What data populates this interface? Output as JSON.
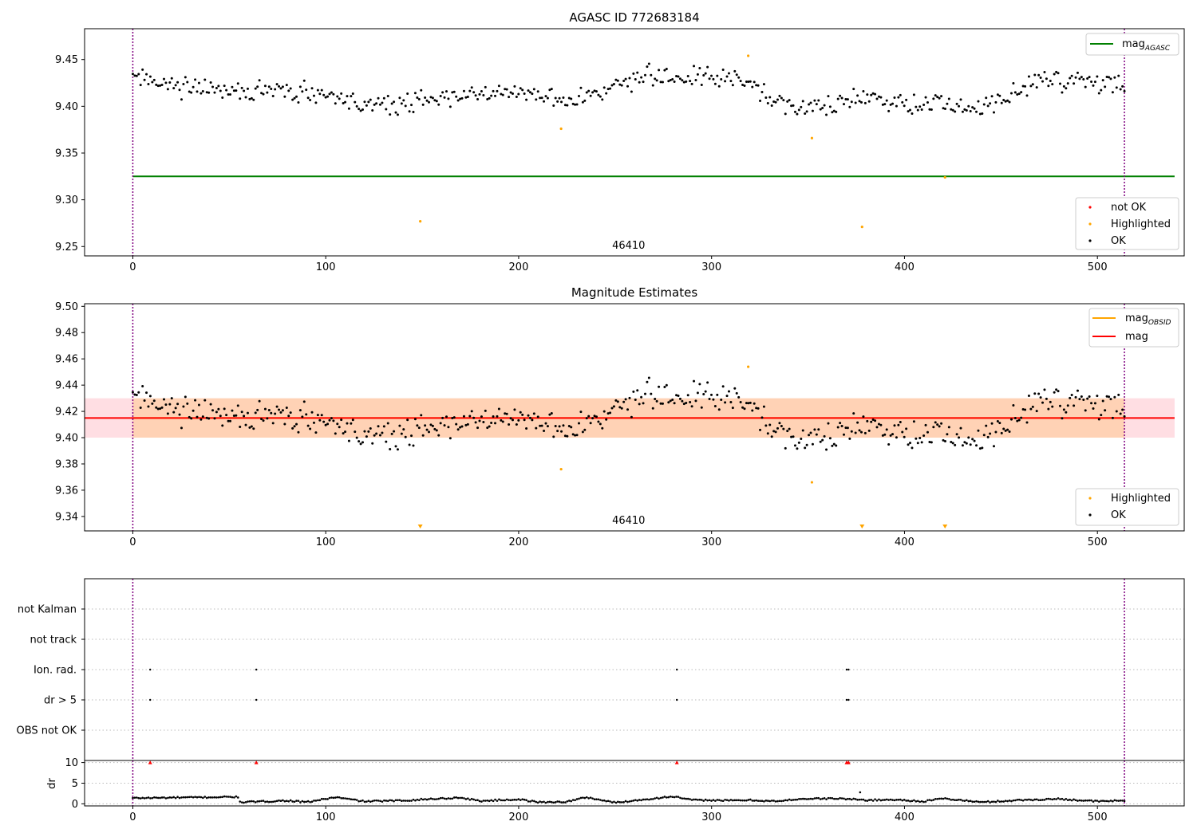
{
  "chart_data": [
    {
      "type": "scatter",
      "title": "AGASC ID 772683184",
      "xlim": [
        -25,
        545
      ],
      "ylim": [
        9.24,
        9.483
      ],
      "xticks": [
        0,
        100,
        200,
        300,
        400,
        500
      ],
      "yticks": [
        9.25,
        9.3,
        9.35,
        9.4,
        9.45
      ],
      "ytick_labels": [
        "9.25",
        "9.30",
        "9.35",
        "9.40",
        "9.45"
      ],
      "obsid_label": "46410",
      "obsid_label_x": 257,
      "vlines": [
        0,
        514
      ],
      "hline_agasc": {
        "value": 9.325,
        "x_range": [
          0,
          540
        ]
      },
      "legend_top": [
        {
          "label": "mag",
          "sub": "AGASC",
          "color": "#008000"
        }
      ],
      "legend_bottom": [
        {
          "label": "not OK",
          "color": "#ff0000"
        },
        {
          "label": "Highlighted",
          "color": "#ffa500"
        },
        {
          "label": "OK",
          "color": "#000000"
        }
      ],
      "highlighted_points": [
        [
          149,
          9.277
        ],
        [
          222,
          9.376
        ],
        [
          319,
          9.454
        ],
        [
          352,
          9.366
        ],
        [
          378,
          9.271
        ],
        [
          421,
          9.324
        ]
      ],
      "ok_trend": [
        [
          0,
          9.43
        ],
        [
          15,
          9.425
        ],
        [
          30,
          9.42
        ],
        [
          50,
          9.415
        ],
        [
          70,
          9.415
        ],
        [
          90,
          9.414
        ],
        [
          110,
          9.408
        ],
        [
          125,
          9.4
        ],
        [
          140,
          9.403
        ],
        [
          160,
          9.41
        ],
        [
          180,
          9.412
        ],
        [
          200,
          9.418
        ],
        [
          215,
          9.415
        ],
        [
          225,
          9.405
        ],
        [
          240,
          9.413
        ],
        [
          260,
          9.43
        ],
        [
          280,
          9.432
        ],
        [
          300,
          9.432
        ],
        [
          320,
          9.428
        ],
        [
          330,
          9.408
        ],
        [
          345,
          9.4
        ],
        [
          360,
          9.398
        ],
        [
          380,
          9.41
        ],
        [
          400,
          9.405
        ],
        [
          420,
          9.402
        ],
        [
          440,
          9.397
        ],
        [
          455,
          9.412
        ],
        [
          470,
          9.425
        ],
        [
          490,
          9.428
        ],
        [
          514,
          9.422
        ]
      ],
      "ok_spread": 0.009,
      "ok_count": 510,
      "ok_x_range": [
        0,
        514
      ]
    },
    {
      "type": "scatter",
      "title": "Magnitude Estimates",
      "xlim": [
        -25,
        545
      ],
      "ylim": [
        9.329,
        9.502
      ],
      "xticks": [
        0,
        100,
        200,
        300,
        400,
        500
      ],
      "yticks": [
        9.34,
        9.36,
        9.38,
        9.4,
        9.42,
        9.44,
        9.46,
        9.48,
        9.5
      ],
      "ytick_labels": [
        "9.34",
        "9.36",
        "9.38",
        "9.40",
        "9.42",
        "9.44",
        "9.46",
        "9.48",
        "9.50"
      ],
      "obsid_label": "46410",
      "obsid_label_x": 257,
      "vlines": [
        0,
        514
      ],
      "mag": 9.415,
      "mag_band": [
        9.4,
        9.43
      ],
      "mag_obsid": 9.415,
      "band_x_range": [
        -25,
        540
      ],
      "legend_top": [
        {
          "label": "mag",
          "sub": "OBSID",
          "color": "#ffa500"
        },
        {
          "label": "mag",
          "sub": "",
          "color": "#ff0000"
        }
      ],
      "legend_bottom": [
        {
          "label": "Highlighted",
          "color": "#ffa500"
        },
        {
          "label": "OK",
          "color": "#000000"
        }
      ],
      "highlighted_points": [
        [
          222,
          9.376
        ],
        [
          319,
          9.454
        ],
        [
          352,
          9.366
        ]
      ],
      "below_range_markers": [
        149,
        378,
        421
      ]
    },
    {
      "type": "scatter",
      "title": "",
      "xlim": [
        -25,
        545
      ],
      "xticks": [
        0,
        100,
        200,
        300,
        400,
        500
      ],
      "flag_rows": [
        "not Kalman",
        "not track",
        "Ion. rad.",
        "dr > 5",
        "OBS not OK"
      ],
      "flag_points": {
        "Ion. rad.": [
          9,
          64,
          282,
          370,
          371
        ],
        "dr > 5": [
          9,
          64,
          282,
          370,
          371
        ]
      },
      "vlines": [
        0,
        514
      ]
    },
    {
      "type": "scatter",
      "title": "",
      "ylabel": "dr",
      "xlim": [
        -25,
        545
      ],
      "ylim": [
        -0.5,
        10.5
      ],
      "xticks": [
        0,
        100,
        200,
        300,
        400,
        500
      ],
      "yticks": [
        0,
        5,
        10
      ],
      "ytick_labels": [
        "0",
        "5",
        "10"
      ],
      "vlines": [
        0,
        514
      ],
      "capped_points": [
        9,
        64,
        282,
        370,
        371
      ],
      "dr_trend": [
        [
          0,
          1.4
        ],
        [
          20,
          1.5
        ],
        [
          40,
          1.6
        ],
        [
          54,
          1.7
        ],
        [
          56,
          0.4
        ],
        [
          70,
          0.6
        ],
        [
          80,
          0.8
        ],
        [
          90,
          0.4
        ],
        [
          105,
          1.6
        ],
        [
          120,
          0.6
        ],
        [
          140,
          0.8
        ],
        [
          155,
          1.2
        ],
        [
          170,
          1.5
        ],
        [
          180,
          0.7
        ],
        [
          200,
          1.1
        ],
        [
          210,
          0.4
        ],
        [
          225,
          0.5
        ],
        [
          235,
          1.6
        ],
        [
          250,
          0.3
        ],
        [
          270,
          1.3
        ],
        [
          280,
          1.8
        ],
        [
          290,
          0.9
        ],
        [
          300,
          0.9
        ],
        [
          310,
          0.8
        ],
        [
          320,
          0.9
        ],
        [
          335,
          0.6
        ],
        [
          345,
          1.2
        ],
        [
          365,
          1.3
        ],
        [
          370,
          1.2
        ],
        [
          380,
          0.9
        ],
        [
          395,
          1.0
        ],
        [
          410,
          0.6
        ],
        [
          420,
          1.3
        ],
        [
          440,
          0.4
        ],
        [
          460,
          0.9
        ],
        [
          480,
          1.2
        ],
        [
          500,
          0.6
        ],
        [
          514,
          0.8
        ]
      ]
    }
  ]
}
